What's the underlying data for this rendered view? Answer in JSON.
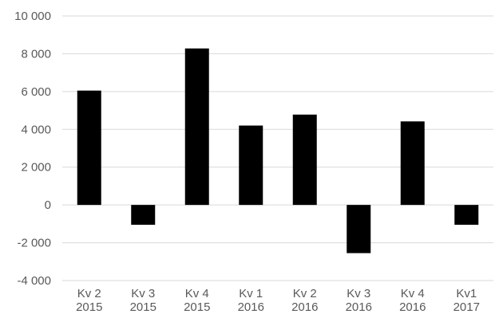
{
  "chart_data": {
    "type": "bar",
    "title": "",
    "xlabel": "",
    "ylabel": "",
    "categories": [
      [
        "Kv 2",
        "2015"
      ],
      [
        "Kv 3",
        "2015"
      ],
      [
        "Kv 4",
        "2015"
      ],
      [
        "Kv 1",
        "2016"
      ],
      [
        "Kv 2",
        "2016"
      ],
      [
        "Kv 3",
        "2016"
      ],
      [
        "Kv 4",
        "2016"
      ],
      [
        "Kv1",
        "2017"
      ]
    ],
    "values": [
      6050,
      -1050,
      8280,
      4200,
      4780,
      -2550,
      4420,
      -1050
    ],
    "ylim": [
      -4000,
      10000
    ],
    "yticks": [
      -4000,
      -2000,
      0,
      2000,
      4000,
      6000,
      8000,
      10000
    ],
    "ytick_labels": [
      "-4 000",
      "-2 000",
      "0",
      "2 000",
      "4 000",
      "6 000",
      "8 000",
      "10 000"
    ],
    "grid": true,
    "bar_color": "#000000",
    "grid_color": "#d9d9d9",
    "text_color": "#595959"
  }
}
